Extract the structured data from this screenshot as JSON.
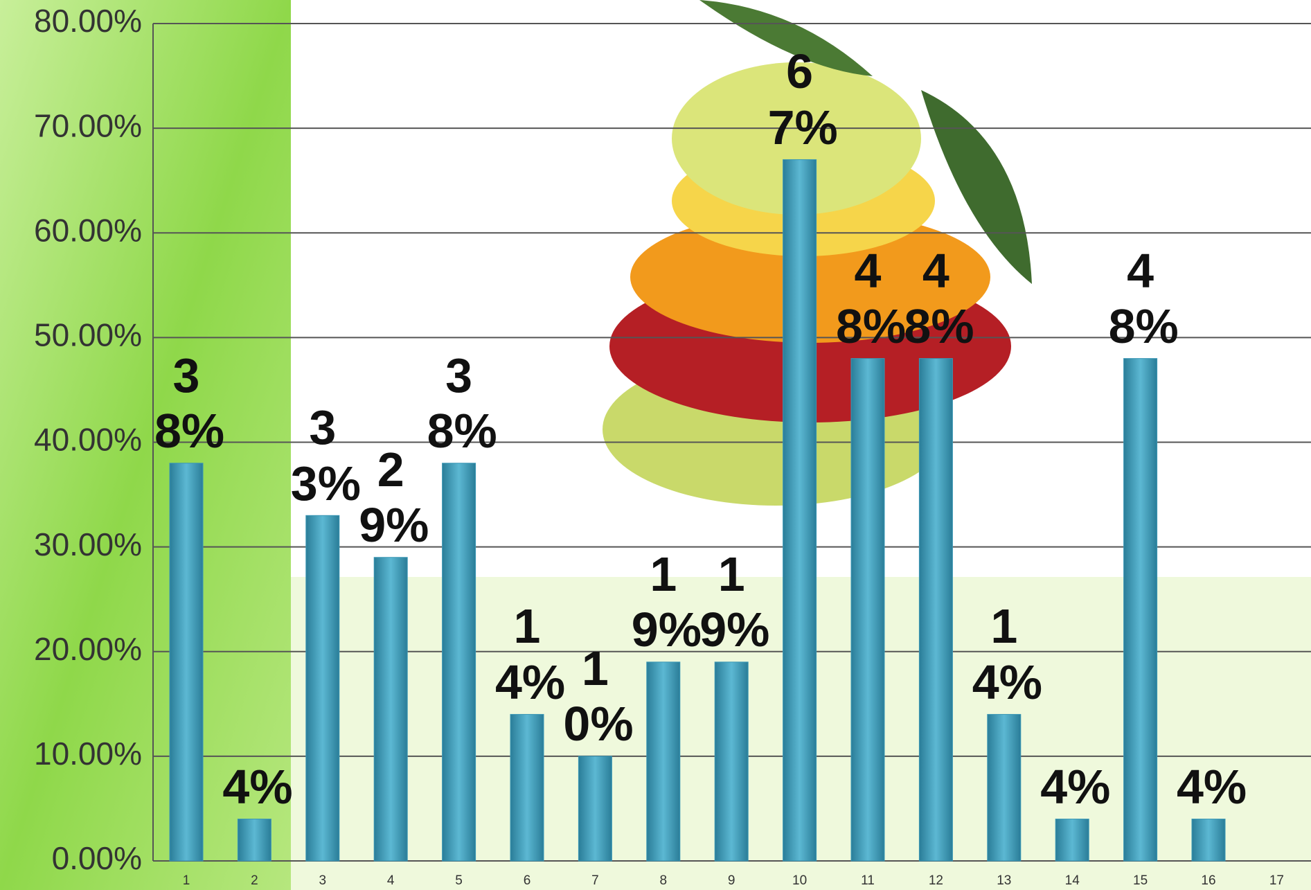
{
  "chart_data": {
    "type": "bar",
    "categories": [
      "1",
      "2",
      "3",
      "4",
      "5",
      "6",
      "7",
      "8",
      "9",
      "10",
      "11",
      "12",
      "13",
      "14",
      "15",
      "16",
      "17"
    ],
    "values": [
      38,
      4,
      33,
      29,
      38,
      14,
      10,
      19,
      19,
      67,
      48,
      48,
      14,
      4,
      48,
      4,
      null
    ],
    "value_labels": [
      "38%",
      "4%",
      "33%",
      "29%",
      "38%",
      "14%",
      "10%",
      "19%",
      "19%",
      "67%",
      "48%",
      "48%",
      "14%",
      "4%",
      "48%",
      "4%",
      null
    ],
    "color": "#3a97b5",
    "ylim": [
      0,
      80
    ],
    "yticks": [
      {
        "value": 0,
        "label": "0.00%"
      },
      {
        "value": 10,
        "label": "10.00%"
      },
      {
        "value": 20,
        "label": "20.00%"
      },
      {
        "value": 30,
        "label": "30.00%"
      },
      {
        "value": 40,
        "label": "40.00%"
      },
      {
        "value": 50,
        "label": "50.00%"
      },
      {
        "value": 60,
        "label": "60.00%"
      },
      {
        "value": 70,
        "label": "70.00%"
      },
      {
        "value": 80,
        "label": "80.00%"
      }
    ],
    "grid": true
  }
}
